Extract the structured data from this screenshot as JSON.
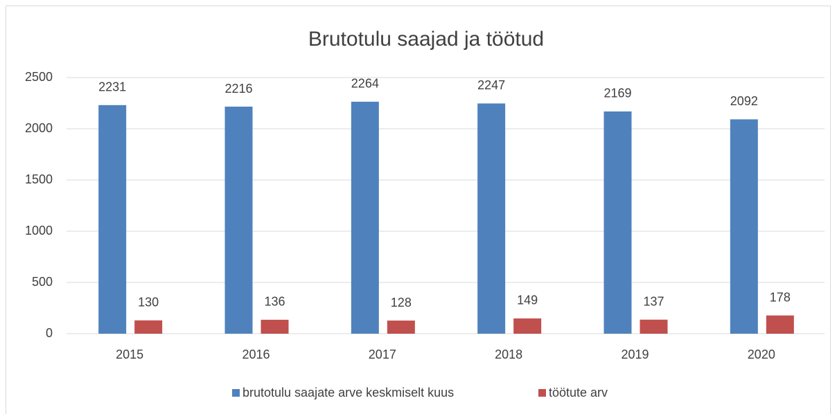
{
  "chart_data": {
    "type": "bar",
    "title": "Brutotulu saajad ja töötud",
    "categories": [
      "2015",
      "2016",
      "2017",
      "2018",
      "2019",
      "2020"
    ],
    "series": [
      {
        "name": "brutotulu saajate arve keskmiselt kuus",
        "color": "#4f81bd",
        "values": [
          2231,
          2216,
          2264,
          2247,
          2169,
          2092
        ]
      },
      {
        "name": "töötute arv",
        "color": "#c0504d",
        "values": [
          130,
          136,
          128,
          149,
          137,
          178
        ]
      }
    ],
    "ylim": [
      0,
      2500
    ],
    "yticks": [
      0,
      500,
      1000,
      1500,
      2000,
      2500
    ],
    "grid": true,
    "legend": "bottom"
  }
}
